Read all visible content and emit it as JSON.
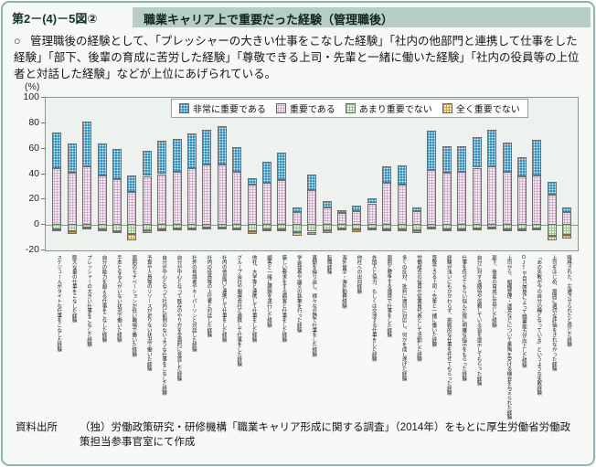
{
  "figure": {
    "code": "第2－(4)－5図②",
    "title": "職業キャリア上で重要だった経験（管理職後）"
  },
  "summary": {
    "bullet": "○",
    "text": "管理職後の経験として、「プレッシャーの大きい仕事をこなした経験」「社内の他部門と連携して仕事をした経験」「部下、後輩の育成に苦労した経験」「尊敬できる上司・先輩と一緒に働いた経験」「社内の役員等の上位者と対話した経験」などが上位にあげられている。"
  },
  "chart_data": {
    "type": "bar",
    "stacked": true,
    "unit_label": "(%)",
    "ylim": [
      -20,
      100
    ],
    "yticks": [
      100,
      80,
      60,
      40,
      20,
      0,
      -20
    ],
    "grid": false,
    "legend_position": "top",
    "legend": [
      "非常に重要である",
      "重要である",
      "あまり重要でない",
      "全く重要でない"
    ],
    "colors": {
      "very_important": "#2f93c0",
      "important": "#f2e7f0",
      "important_dot": "#bf93b8",
      "not_very": "#e8f2e0",
      "not_very_grid": "#9cc191",
      "not_at_all": "#f7e9c4",
      "not_at_all_grid": "#d8a13c"
    },
    "categories": [
      "スケジュールがタイトな仕事をこなした経験",
      "膨大な量の仕事をこなした経験",
      "プレッシャーの大きい仕事をこなした経験",
      "自分の能力を超える仕事をこなした経験",
      "手本となる人がいない状況で働いた経験",
      "周囲のモチベーションが低い職場で働いた経験",
      "予算や人員等のリソースが足りない状況で働いた経験",
      "自分が中心となって社内に前例のないような仕事をこなした経験",
      "自分が中心となって既存のやり方を全面的に見直した経験",
      "社外の有識者やキーパーソンと対話した経験",
      "社内の役員等の上位者と対話した経験",
      "社内の他部門と連携して仕事をした経験",
      "グループ会社や関連会社と連携して仕事をした経験",
      "他社、大学等と連携して仕事をした経験",
      "顧客と一緒に課題を遂行した経験",
      "厳しい要求をする顧客と仕事をした経験",
      "学会発表や論文の執筆を行った経験",
      "異動を繰り返し、様々な分野で仕事をした経験",
      "転職経験",
      "海外留学・海外勤務経験",
      "他社への出向経験",
      "外国人と協力、もしくは交渉する仕事をした経験",
      "周囲と競争する環境で仕事をした経験",
      "多くの反対、批判に適切に対応し、何かを成し遂げた経験",
      "労働組合の役員や従業員代表として活動した経験",
      "尊敬できる上司・先輩と一緒に働いた経験",
      "経験が浅いにもかかわらず、挑戦的な仕事を任せてもらった経験",
      "仕事を任せてもらい悩んだ際に明確な指示をもらった経験",
      "自分に対する期待や信頼している旨を提示してもらった経験",
      "部下、後輩の育成に苦労した経験",
      "上司から、組織管理・運営などについて薫陶を受ける機会を与えられた経験",
      "OJTや自己啓発によって職業能力が向上した経験",
      "「あの失敗が今の自分の糧となっている」というような失敗経験",
      "上司をはじめ、周囲に適切な評価をされなかった経験",
      "降格された、左遷させられたと感じた経験"
    ],
    "series": [
      {
        "name": "非常に重要である",
        "values": [
          28,
          23,
          35,
          25,
          24,
          13,
          19.5,
          26,
          26.5,
          27,
          27.5,
          30.5,
          19,
          5,
          17,
          21.5,
          4,
          12.5,
          5,
          2.5,
          4,
          4,
          13,
          15,
          3,
          31,
          21,
          20,
          24,
          29,
          23,
          15,
          28,
          10,
          4
        ]
      },
      {
        "name": "重要である",
        "values": [
          45,
          41,
          46,
          39,
          36,
          26,
          38.5,
          40,
          41.5,
          45,
          47.5,
          47.5,
          42,
          32,
          33,
          35.5,
          10,
          27.5,
          14,
          9.5,
          11,
          17,
          33,
          32,
          11,
          43,
          41,
          42,
          45,
          46,
          42,
          38,
          39,
          24,
          10
        ]
      },
      {
        "name": "あまり重要でない",
        "values": [
          -4.5,
          -5.5,
          -3,
          -4.5,
          -5.5,
          -8,
          -5,
          -4,
          -3.5,
          -3.5,
          -3,
          -3,
          -3.5,
          -5.5,
          -4,
          -4,
          -6.5,
          -6,
          -5,
          -3.5,
          -4.5,
          -3.5,
          -4.5,
          -4,
          -5,
          -3,
          -4,
          -4,
          -3.5,
          -3,
          -4,
          -4.5,
          -3.5,
          -9,
          -8.5
        ]
      },
      {
        "name": "全く重要でない",
        "values": [
          -1.5,
          -2,
          -1,
          -1.5,
          -1.5,
          -5,
          -2,
          -1,
          -1,
          -1,
          -1,
          -1,
          -1,
          -2,
          -1.5,
          -1.5,
          -2.5,
          -2.5,
          -2,
          -1.5,
          -2,
          -1.5,
          -1.5,
          -1.5,
          -2,
          -1,
          -1,
          -1.5,
          -1,
          -1,
          -1,
          -1.5,
          -1,
          -3.5,
          -3
        ]
      }
    ]
  },
  "source": {
    "label": "資料出所",
    "text": "（独）労働政策研究・研修機構「職業キャリア形成に関する調査」（2014年）をもとに厚生労働省労働政策担当参事官室にて作成"
  }
}
